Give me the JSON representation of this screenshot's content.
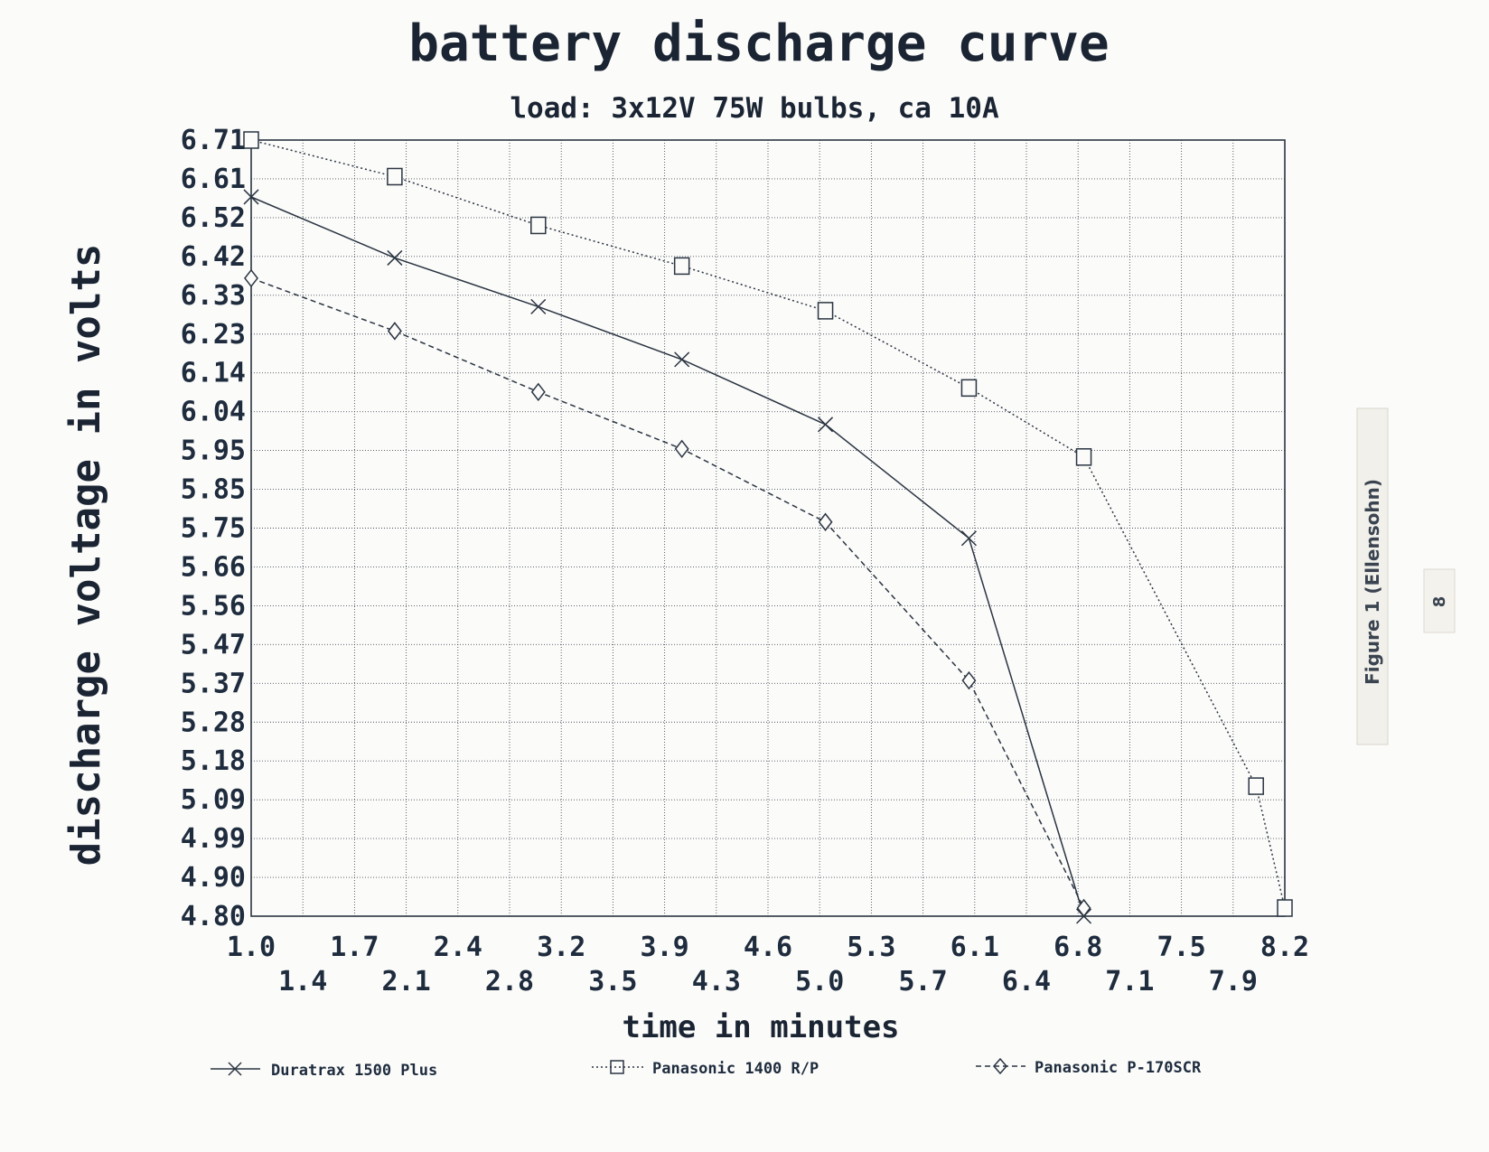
{
  "chart_data": {
    "type": "line",
    "title": "battery discharge curve",
    "subtitle": "load: 3x12V 75W bulbs, ca 10A",
    "xlabel": "time in minutes",
    "ylabel": "discharge voltage in volts",
    "xlim": [
      1.0,
      8.2
    ],
    "ylim": [
      4.8,
      6.71
    ],
    "grid": true,
    "legend_position": "bottom",
    "x_tick_labels_row1": [
      "1.0",
      "1.7",
      "2.4",
      "3.2",
      "3.9",
      "4.6",
      "5.3",
      "6.1",
      "6.8",
      "7.5",
      "8.2"
    ],
    "x_tick_labels_row2": [
      "1.4",
      "2.1",
      "2.8",
      "3.5",
      "4.3",
      "5.0",
      "5.7",
      "6.4",
      "7.1",
      "7.9"
    ],
    "y_tick_labels": [
      "6.71",
      "6.61",
      "6.52",
      "6.42",
      "6.33",
      "6.23",
      "6.14",
      "6.04",
      "5.95",
      "5.85",
      "5.75",
      "5.66",
      "5.56",
      "5.47",
      "5.37",
      "5.28",
      "5.18",
      "5.09",
      "4.99",
      "4.90",
      "4.80"
    ],
    "series": [
      {
        "name": "Duratrax 1500 Plus",
        "marker": "x",
        "line_style": "solid",
        "x": [
          1.0,
          2.0,
          3.0,
          4.0,
          5.0,
          6.0,
          6.8
        ],
        "y": [
          6.57,
          6.42,
          6.3,
          6.17,
          6.01,
          5.73,
          4.8
        ]
      },
      {
        "name": "Panasonic 1400 R/P",
        "marker": "square",
        "line_style": "dotted",
        "x": [
          1.0,
          2.0,
          3.0,
          4.0,
          5.0,
          6.0,
          6.8,
          8.0,
          8.2
        ],
        "y": [
          6.71,
          6.62,
          6.5,
          6.4,
          6.29,
          6.1,
          5.93,
          5.12,
          4.82
        ]
      },
      {
        "name": "Panasonic P-170SCR",
        "marker": "diamond",
        "line_style": "dashed",
        "x": [
          1.0,
          2.0,
          3.0,
          4.0,
          5.0,
          6.0,
          6.8
        ],
        "y": [
          6.37,
          6.24,
          6.09,
          5.95,
          5.77,
          5.38,
          4.82
        ]
      }
    ]
  },
  "side_text": {
    "figure_label": "Figure 1 (Ellensohn)",
    "page_number": "8"
  },
  "colors": {
    "ink": "#1e2c3e",
    "grid": "#2a3442",
    "paper": "#fbfbf9"
  }
}
